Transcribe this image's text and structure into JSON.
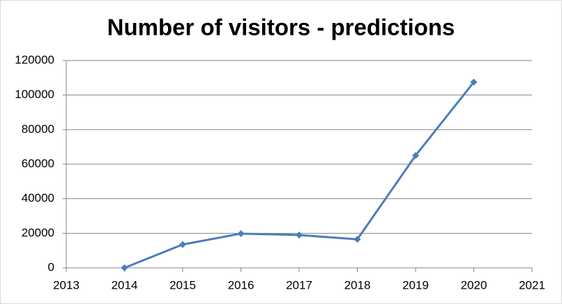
{
  "chart_data": {
    "type": "line",
    "title": "Number of visitors - predictions",
    "x": [
      2014,
      2015,
      2016,
      2017,
      2018,
      2019,
      2020
    ],
    "series": [
      {
        "name": "Number of visitors",
        "color": "#4a7ebb",
        "values": [
          0,
          13500,
          19800,
          19000,
          16500,
          65000,
          107500
        ]
      }
    ],
    "xlim": [
      2013,
      2021
    ],
    "xticks": [
      2013,
      2014,
      2015,
      2016,
      2017,
      2018,
      2019,
      2020,
      2021
    ],
    "ylim": [
      0,
      120000
    ],
    "yticks": [
      0,
      20000,
      40000,
      60000,
      80000,
      100000,
      120000
    ],
    "grid": true,
    "legend": false
  }
}
